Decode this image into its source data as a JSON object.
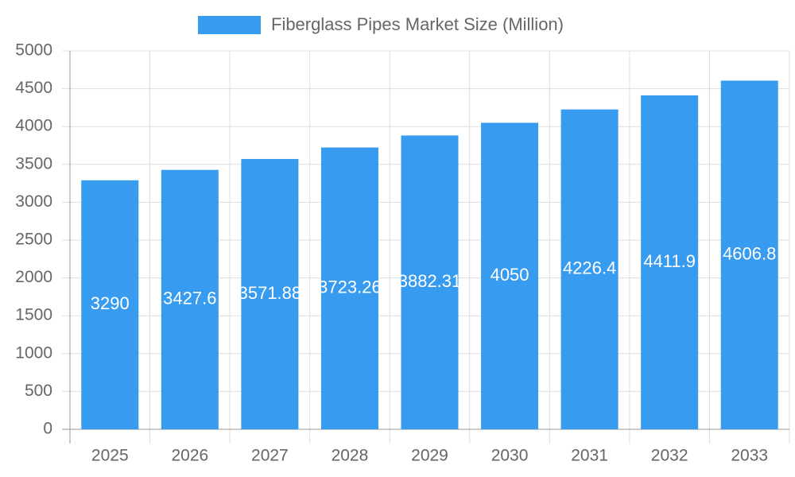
{
  "chart_data": {
    "type": "bar",
    "legend_label": "Fiberglass Pipes Market Size (Million)",
    "categories": [
      "2025",
      "2026",
      "2027",
      "2028",
      "2029",
      "2030",
      "2031",
      "2032",
      "2033"
    ],
    "values": [
      3290,
      3427.6,
      3571.88,
      3723.26,
      3882.31,
      4050,
      4226.4,
      4411.9,
      4606.8
    ],
    "color": "#379bef",
    "ylim": [
      0,
      5000
    ],
    "yticks": [
      0,
      500,
      1000,
      1500,
      2000,
      2500,
      3000,
      3500,
      4000,
      4500,
      5000
    ],
    "grid": true,
    "legend": "top"
  }
}
